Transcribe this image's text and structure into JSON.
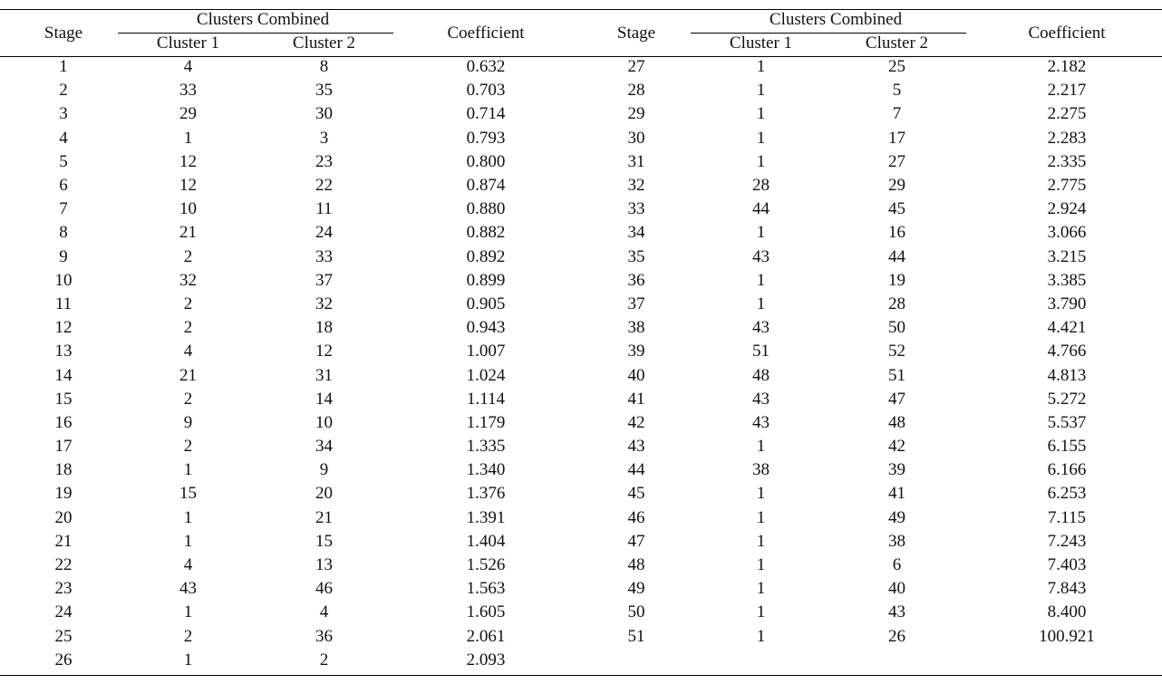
{
  "headers": {
    "stage": "Stage",
    "clusters_combined": "Clusters Combined",
    "cluster1": "Cluster 1",
    "cluster2": "Cluster 2",
    "coefficient": "Coefficient"
  },
  "rows": [
    {
      "left": {
        "stage": "1",
        "c1": "4",
        "c2": "8",
        "coef": "0.632"
      },
      "right": {
        "stage": "27",
        "c1": "1",
        "c2": "25",
        "coef": "2.182"
      }
    },
    {
      "left": {
        "stage": "2",
        "c1": "33",
        "c2": "35",
        "coef": "0.703"
      },
      "right": {
        "stage": "28",
        "c1": "1",
        "c2": "5",
        "coef": "2.217"
      }
    },
    {
      "left": {
        "stage": "3",
        "c1": "29",
        "c2": "30",
        "coef": "0.714"
      },
      "right": {
        "stage": "29",
        "c1": "1",
        "c2": "7",
        "coef": "2.275"
      }
    },
    {
      "left": {
        "stage": "4",
        "c1": "1",
        "c2": "3",
        "coef": "0.793"
      },
      "right": {
        "stage": "30",
        "c1": "1",
        "c2": "17",
        "coef": "2.283"
      }
    },
    {
      "left": {
        "stage": "5",
        "c1": "12",
        "c2": "23",
        "coef": "0.800"
      },
      "right": {
        "stage": "31",
        "c1": "1",
        "c2": "27",
        "coef": "2.335"
      }
    },
    {
      "left": {
        "stage": "6",
        "c1": "12",
        "c2": "22",
        "coef": "0.874"
      },
      "right": {
        "stage": "32",
        "c1": "28",
        "c2": "29",
        "coef": "2.775"
      }
    },
    {
      "left": {
        "stage": "7",
        "c1": "10",
        "c2": "11",
        "coef": "0.880"
      },
      "right": {
        "stage": "33",
        "c1": "44",
        "c2": "45",
        "coef": "2.924"
      }
    },
    {
      "left": {
        "stage": "8",
        "c1": "21",
        "c2": "24",
        "coef": "0.882"
      },
      "right": {
        "stage": "34",
        "c1": "1",
        "c2": "16",
        "coef": "3.066"
      }
    },
    {
      "left": {
        "stage": "9",
        "c1": "2",
        "c2": "33",
        "coef": "0.892"
      },
      "right": {
        "stage": "35",
        "c1": "43",
        "c2": "44",
        "coef": "3.215"
      }
    },
    {
      "left": {
        "stage": "10",
        "c1": "32",
        "c2": "37",
        "coef": "0.899"
      },
      "right": {
        "stage": "36",
        "c1": "1",
        "c2": "19",
        "coef": "3.385"
      }
    },
    {
      "left": {
        "stage": "11",
        "c1": "2",
        "c2": "32",
        "coef": "0.905"
      },
      "right": {
        "stage": "37",
        "c1": "1",
        "c2": "28",
        "coef": "3.790"
      }
    },
    {
      "left": {
        "stage": "12",
        "c1": "2",
        "c2": "18",
        "coef": "0.943"
      },
      "right": {
        "stage": "38",
        "c1": "43",
        "c2": "50",
        "coef": "4.421"
      }
    },
    {
      "left": {
        "stage": "13",
        "c1": "4",
        "c2": "12",
        "coef": "1.007"
      },
      "right": {
        "stage": "39",
        "c1": "51",
        "c2": "52",
        "coef": "4.766"
      }
    },
    {
      "left": {
        "stage": "14",
        "c1": "21",
        "c2": "31",
        "coef": "1.024"
      },
      "right": {
        "stage": "40",
        "c1": "48",
        "c2": "51",
        "coef": "4.813"
      }
    },
    {
      "left": {
        "stage": "15",
        "c1": "2",
        "c2": "14",
        "coef": "1.114"
      },
      "right": {
        "stage": "41",
        "c1": "43",
        "c2": "47",
        "coef": "5.272"
      }
    },
    {
      "left": {
        "stage": "16",
        "c1": "9",
        "c2": "10",
        "coef": "1.179"
      },
      "right": {
        "stage": "42",
        "c1": "43",
        "c2": "48",
        "coef": "5.537"
      }
    },
    {
      "left": {
        "stage": "17",
        "c1": "2",
        "c2": "34",
        "coef": "1.335"
      },
      "right": {
        "stage": "43",
        "c1": "1",
        "c2": "42",
        "coef": "6.155"
      }
    },
    {
      "left": {
        "stage": "18",
        "c1": "1",
        "c2": "9",
        "coef": "1.340"
      },
      "right": {
        "stage": "44",
        "c1": "38",
        "c2": "39",
        "coef": "6.166"
      }
    },
    {
      "left": {
        "stage": "19",
        "c1": "15",
        "c2": "20",
        "coef": "1.376"
      },
      "right": {
        "stage": "45",
        "c1": "1",
        "c2": "41",
        "coef": "6.253"
      }
    },
    {
      "left": {
        "stage": "20",
        "c1": "1",
        "c2": "21",
        "coef": "1.391"
      },
      "right": {
        "stage": "46",
        "c1": "1",
        "c2": "49",
        "coef": "7.115"
      }
    },
    {
      "left": {
        "stage": "21",
        "c1": "1",
        "c2": "15",
        "coef": "1.404"
      },
      "right": {
        "stage": "47",
        "c1": "1",
        "c2": "38",
        "coef": "7.243"
      }
    },
    {
      "left": {
        "stage": "22",
        "c1": "4",
        "c2": "13",
        "coef": "1.526"
      },
      "right": {
        "stage": "48",
        "c1": "1",
        "c2": "6",
        "coef": "7.403"
      }
    },
    {
      "left": {
        "stage": "23",
        "c1": "43",
        "c2": "46",
        "coef": "1.563"
      },
      "right": {
        "stage": "49",
        "c1": "1",
        "c2": "40",
        "coef": "7.843"
      }
    },
    {
      "left": {
        "stage": "24",
        "c1": "1",
        "c2": "4",
        "coef": "1.605"
      },
      "right": {
        "stage": "50",
        "c1": "1",
        "c2": "43",
        "coef": "8.400"
      }
    },
    {
      "left": {
        "stage": "25",
        "c1": "2",
        "c2": "36",
        "coef": "2.061"
      },
      "right": {
        "stage": "51",
        "c1": "1",
        "c2": "26",
        "coef": "100.921"
      }
    },
    {
      "left": {
        "stage": "26",
        "c1": "1",
        "c2": "2",
        "coef": "2.093"
      },
      "right": {
        "stage": "",
        "c1": "",
        "c2": "",
        "coef": ""
      }
    }
  ]
}
